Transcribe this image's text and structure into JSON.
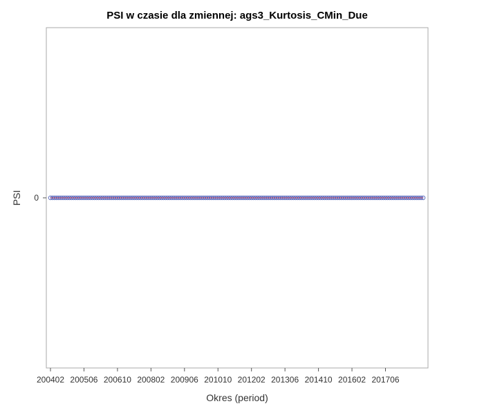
{
  "chart_data": {
    "type": "line",
    "title": "PSI w czasie dla zmiennej: ags3_Kurtosis_CMin_Due",
    "xlabel": "Okres (period)",
    "ylabel": "PSI",
    "x_tick_labels": [
      "200402",
      "200506",
      "200610",
      "200802",
      "200906",
      "201010",
      "201202",
      "201306",
      "201410",
      "201602",
      "201706"
    ],
    "x_range": [
      "200402",
      "201812"
    ],
    "y_ticks": [
      "0"
    ],
    "y_value": 0,
    "series": [
      {
        "values_constant": 0,
        "count": 179
      }
    ],
    "colors": {
      "marker_edge": "#4f5fb8",
      "line": "#d8283a"
    },
    "grid": false,
    "legend": "none"
  }
}
